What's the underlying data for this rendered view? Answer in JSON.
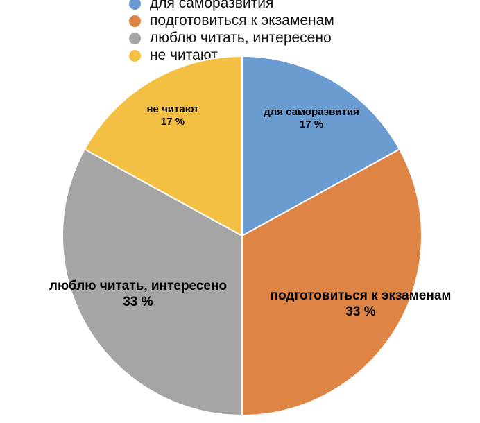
{
  "chart_data": {
    "type": "pie",
    "title": "",
    "legend_position": "top",
    "categories": [
      "для саморазвития",
      "подготовиться к экзаменам",
      "люблю читать, интересено",
      "не читают"
    ],
    "values": [
      17,
      33,
      33,
      17
    ],
    "value_labels": [
      "17 %",
      "33 %",
      "33 %",
      "17 %"
    ],
    "colors": [
      "#6a9bd1",
      "#de8444",
      "#a5a5a5",
      "#f4c043"
    ]
  }
}
